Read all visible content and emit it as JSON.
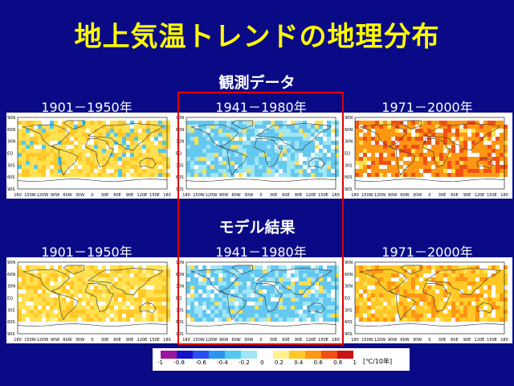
{
  "title": "地上気温トレンドの地理分布",
  "sections": {
    "observed": "観測データ",
    "model": "モデル結果"
  },
  "periods": {
    "p1": "1901－1950年",
    "p2": "1941－1980年",
    "p3": "1971－2000年"
  },
  "map_axes": {
    "lat": [
      "90N",
      "60N",
      "30N",
      "EQ",
      "30S",
      "60S",
      "90S"
    ],
    "lon": [
      "180",
      "150W",
      "120W",
      "90W",
      "60W",
      "30W",
      "0",
      "30E",
      "60E",
      "90E",
      "120E",
      "150E",
      "180"
    ]
  },
  "colorbar": {
    "ticks": [
      "-1",
      "-0.8",
      "-0.6",
      "-0.4",
      "-0.2",
      "0",
      "0.2",
      "0.4",
      "0.6",
      "0.8",
      "1"
    ],
    "unit": "[℃/10年]",
    "colors": [
      "#9a14a0",
      "#1414c8",
      "#2850f0",
      "#2896f0",
      "#50c8f0",
      "#a0e6f5",
      "#ffffff",
      "#fff08c",
      "#ffc828",
      "#ff9614",
      "#f05014",
      "#c81414"
    ]
  },
  "maps": [
    {
      "section": "observed",
      "period": "p1",
      "dominant": "#ffe050",
      "secondary": "#ffc828",
      "accent": "#50c8f0"
    },
    {
      "section": "observed",
      "period": "p2",
      "dominant": "#64c8f0",
      "secondary": "#a0e6f5",
      "accent": "#ffe050"
    },
    {
      "section": "observed",
      "period": "p3",
      "dominant": "#ff9614",
      "secondary": "#f05014",
      "accent": "#ffe050"
    },
    {
      "section": "model",
      "period": "p1",
      "dominant": "#ffe050",
      "secondary": "#ffc828",
      "accent": "#fff08c"
    },
    {
      "section": "model",
      "period": "p2",
      "dominant": "#64c8f0",
      "secondary": "#a0e6f5",
      "accent": "#ffe050"
    },
    {
      "section": "model",
      "period": "p3",
      "dominant": "#ffc828",
      "secondary": "#ff9614",
      "accent": "#ffe050"
    }
  ]
}
